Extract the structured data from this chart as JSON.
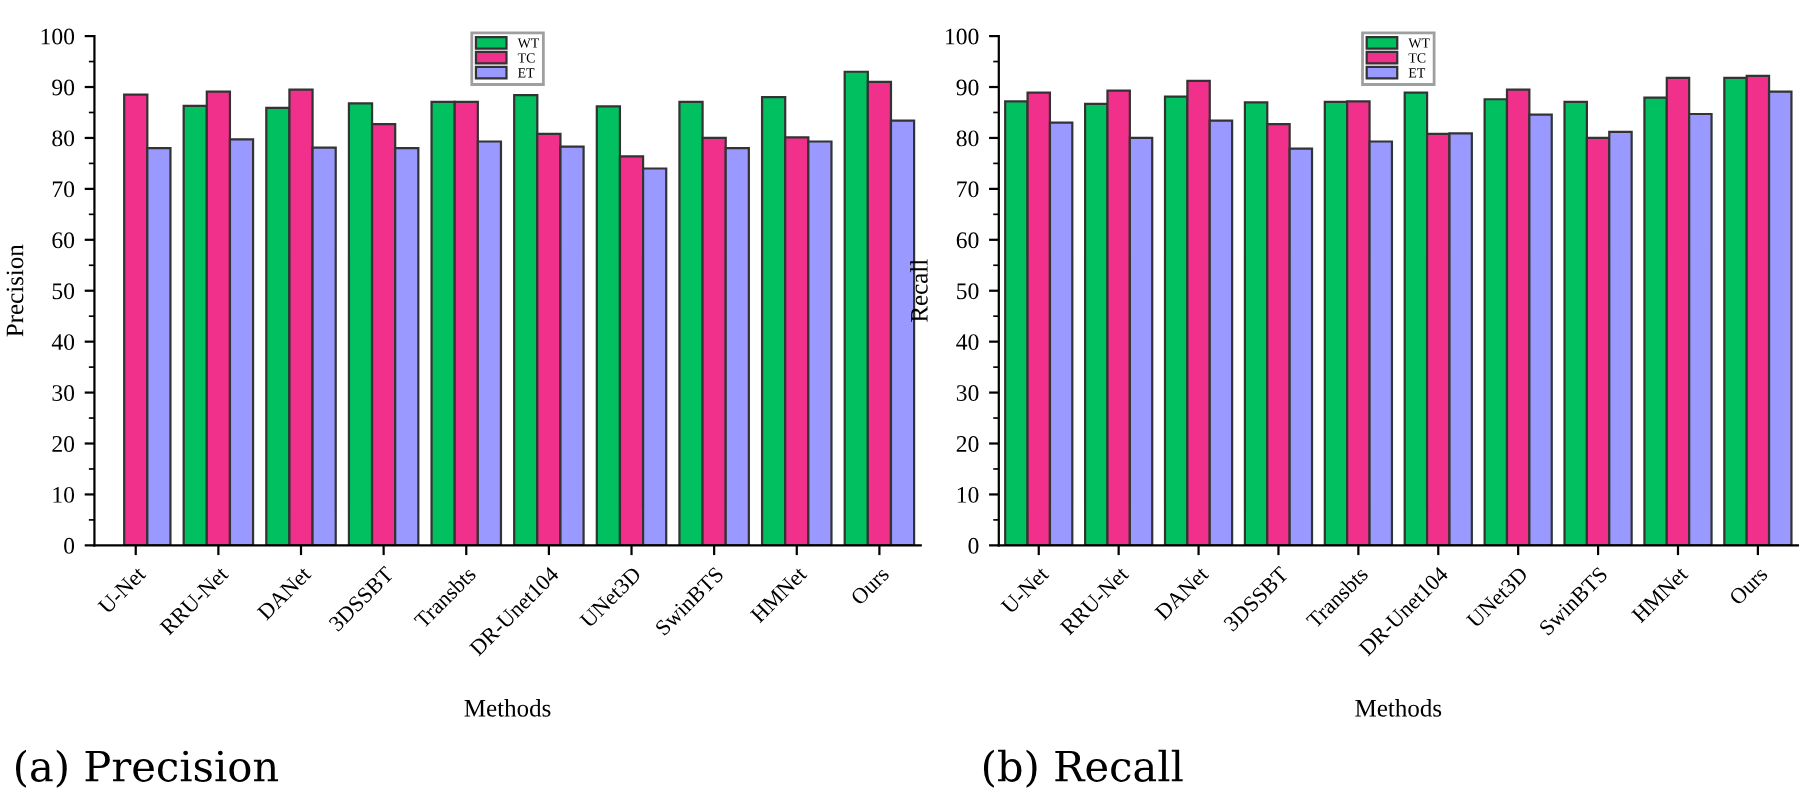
{
  "chart_data": [
    {
      "type": "bar",
      "title": "(a) Precision",
      "xlabel": "Methods",
      "ylabel": "Precision",
      "categories": [
        "U-Net",
        "RRU-Net",
        "DANet",
        "3DSSBT",
        "Transbts",
        "DR-Unet104",
        "UNet3D",
        "SwinBTS",
        "HMNet",
        "Ours"
      ],
      "series": [
        {
          "name": "WT",
          "color": "#00c060",
          "values": [
            null,
            86.3,
            85.9,
            86.8,
            87.1,
            88.4,
            86.2,
            87.1,
            88.0,
            93.0
          ]
        },
        {
          "name": "TC",
          "color": "#f0308a",
          "values": [
            88.5,
            89.1,
            89.5,
            82.7,
            87.1,
            80.8,
            76.4,
            80.0,
            80.1,
            91.0
          ]
        },
        {
          "name": "ET",
          "color": "#9999ff",
          "values": [
            78.0,
            79.7,
            78.1,
            78.0,
            79.3,
            78.3,
            74.0,
            78.0,
            79.3,
            83.4
          ]
        }
      ],
      "ylim": [
        0,
        100
      ],
      "yticks": [
        0,
        10,
        20,
        30,
        40,
        50,
        60,
        70,
        80,
        90,
        100
      ],
      "legend": "top",
      "grid": false
    },
    {
      "type": "bar",
      "title": "(b) Recall",
      "xlabel": "Methods",
      "ylabel": "Recall",
      "categories": [
        "U-Net",
        "RRU-Net",
        "DANet",
        "3DSSBT",
        "Transbts",
        "DR-Unet104",
        "UNet3D",
        "SwinBTS",
        "HMNet",
        "Ours"
      ],
      "series": [
        {
          "name": "WT",
          "color": "#00c060",
          "values": [
            87.2,
            86.7,
            88.1,
            87.0,
            87.1,
            88.9,
            87.6,
            87.1,
            87.9,
            91.8
          ]
        },
        {
          "name": "TC",
          "color": "#f0308a",
          "values": [
            88.9,
            89.3,
            91.2,
            82.7,
            87.2,
            80.8,
            89.5,
            80.0,
            91.8,
            92.2
          ]
        },
        {
          "name": "ET",
          "color": "#9999ff",
          "values": [
            83.0,
            80.0,
            83.4,
            77.9,
            79.3,
            80.9,
            84.6,
            81.2,
            84.7,
            89.1
          ]
        }
      ],
      "ylim": [
        0,
        100
      ],
      "yticks": [
        0,
        10,
        20,
        30,
        40,
        50,
        60,
        70,
        80,
        90,
        100
      ],
      "legend": "top",
      "grid": false
    }
  ]
}
